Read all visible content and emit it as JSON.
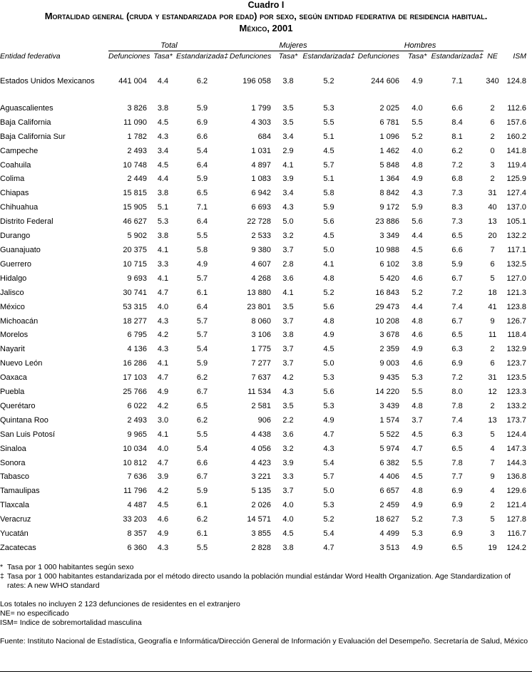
{
  "header": {
    "label": "Cuadro I",
    "title": "Mortalidad general (cruda y estandarizada por edad) por sexo, según entidad federativa de residencia habitual. México, 2001"
  },
  "table": {
    "groups": [
      "Total",
      "Mujeres",
      "Hombres"
    ],
    "columns": [
      "Entidad federativa",
      "Defunciones",
      "Tasa*",
      "Estandarizada‡",
      "Defunciones",
      "Tasa*",
      "Estandarizada‡",
      "Defunciones",
      "Tasa*",
      "Estandarizada‡",
      "NE",
      "ISM"
    ],
    "rows": [
      [
        "Estados Unidos Mexicanos",
        "441 004",
        "4.4",
        "6.2",
        "196 058",
        "3.8",
        "5.2",
        "244 606",
        "4.9",
        "7.1",
        "340",
        "124.8"
      ],
      [
        "Aguascalientes",
        "3 826",
        "3.8",
        "5.9",
        "1 799",
        "3.5",
        "5.3",
        "2 025",
        "4.0",
        "6.6",
        "2",
        "112.6"
      ],
      [
        "Baja California",
        "11 090",
        "4.5",
        "6.9",
        "4 303",
        "3.5",
        "5.5",
        "6 781",
        "5.5",
        "8.4",
        "6",
        "157.6"
      ],
      [
        "Baja California Sur",
        "1 782",
        "4.3",
        "6.6",
        "684",
        "3.4",
        "5.1",
        "1 096",
        "5.2",
        "8.1",
        "2",
        "160.2"
      ],
      [
        "Campeche",
        "2 493",
        "3.4",
        "5.4",
        "1 031",
        "2.9",
        "4.5",
        "1 462",
        "4.0",
        "6.2",
        "0",
        "141.8"
      ],
      [
        "Coahuila",
        "10 748",
        "4.5",
        "6.4",
        "4 897",
        "4.1",
        "5.7",
        "5 848",
        "4.8",
        "7.2",
        "3",
        "119.4"
      ],
      [
        "Colima",
        "2 449",
        "4.4",
        "5.9",
        "1 083",
        "3.9",
        "5.1",
        "1 364",
        "4.9",
        "6.8",
        "2",
        "125.9"
      ],
      [
        "Chiapas",
        "15 815",
        "3.8",
        "6.5",
        "6 942",
        "3.4",
        "5.8",
        "8 842",
        "4.3",
        "7.3",
        "31",
        "127.4"
      ],
      [
        "Chihuahua",
        "15 905",
        "5.1",
        "7.1",
        "6 693",
        "4.3",
        "5.9",
        "9 172",
        "5.9",
        "8.3",
        "40",
        "137.0"
      ],
      [
        "Distrito Federal",
        "46 627",
        "5.3",
        "6.4",
        "22 728",
        "5.0",
        "5.6",
        "23 886",
        "5.6",
        "7.3",
        "13",
        "105.1"
      ],
      [
        "Durango",
        "5 902",
        "3.8",
        "5.5",
        "2 533",
        "3.2",
        "4.5",
        "3 349",
        "4.4",
        "6.5",
        "20",
        "132.2"
      ],
      [
        "Guanajuato",
        "20 375",
        "4.1",
        "5.8",
        "9 380",
        "3.7",
        "5.0",
        "10 988",
        "4.5",
        "6.6",
        "7",
        "117.1"
      ],
      [
        "Guerrero",
        "10 715",
        "3.3",
        "4.9",
        "4 607",
        "2.8",
        "4.1",
        "6 102",
        "3.8",
        "5.9",
        "6",
        "132.5"
      ],
      [
        "Hidalgo",
        "9 693",
        "4.1",
        "5.7",
        "4 268",
        "3.6",
        "4.8",
        "5 420",
        "4.6",
        "6.7",
        "5",
        "127.0"
      ],
      [
        "Jalisco",
        "30 741",
        "4.7",
        "6.1",
        "13 880",
        "4.1",
        "5.2",
        "16 843",
        "5.2",
        "7.2",
        "18",
        "121.3"
      ],
      [
        "México",
        "53 315",
        "4.0",
        "6.4",
        "23 801",
        "3.5",
        "5.6",
        "29 473",
        "4.4",
        "7.4",
        "41",
        "123.8"
      ],
      [
        "Michoacán",
        "18 277",
        "4.3",
        "5.7",
        "8 060",
        "3.7",
        "4.8",
        "10 208",
        "4.8",
        "6.7",
        "9",
        "126.7"
      ],
      [
        "Morelos",
        "6 795",
        "4.2",
        "5.7",
        "3 106",
        "3.8",
        "4.9",
        "3 678",
        "4.6",
        "6.5",
        "11",
        "118.4"
      ],
      [
        "Nayarit",
        "4 136",
        "4.3",
        "5.4",
        "1 775",
        "3.7",
        "4.5",
        "2 359",
        "4.9",
        "6.3",
        "2",
        "132.9"
      ],
      [
        "Nuevo León",
        "16 286",
        "4.1",
        "5.9",
        "7 277",
        "3.7",
        "5.0",
        "9 003",
        "4.6",
        "6.9",
        "6",
        "123.7"
      ],
      [
        "Oaxaca",
        "17 103",
        "4.7",
        "6.2",
        "7 637",
        "4.2",
        "5.3",
        "9 435",
        "5.3",
        "7.2",
        "31",
        "123.5"
      ],
      [
        "Puebla",
        "25 766",
        "4.9",
        "6.7",
        "11 534",
        "4.3",
        "5.6",
        "14 220",
        "5.5",
        "8.0",
        "12",
        "123.3"
      ],
      [
        "Querétaro",
        "6 022",
        "4.2",
        "6.5",
        "2 581",
        "3.5",
        "5.3",
        "3 439",
        "4.8",
        "7.8",
        "2",
        "133.2"
      ],
      [
        "Quintana Roo",
        "2 493",
        "3.0",
        "6.2",
        "906",
        "2.2",
        "4.9",
        "1 574",
        "3.7",
        "7.4",
        "13",
        "173.7"
      ],
      [
        "San Luis Potosí",
        "9 965",
        "4.1",
        "5.5",
        "4 438",
        "3.6",
        "4.7",
        "5 522",
        "4.5",
        "6.3",
        "5",
        "124.4"
      ],
      [
        "Sinaloa",
        "10 034",
        "4.0",
        "5.4",
        "4 056",
        "3.2",
        "4.3",
        "5 974",
        "4.7",
        "6.5",
        "4",
        "147.3"
      ],
      [
        "Sonora",
        "10 812",
        "4.7",
        "6.6",
        "4 423",
        "3.9",
        "5.4",
        "6 382",
        "5.5",
        "7.8",
        "7",
        "144.3"
      ],
      [
        "Tabasco",
        "7 636",
        "3.9",
        "6.7",
        "3 221",
        "3.3",
        "5.7",
        "4 406",
        "4.5",
        "7.7",
        "9",
        "136.8"
      ],
      [
        "Tamaulipas",
        "11 796",
        "4.2",
        "5.9",
        "5 135",
        "3.7",
        "5.0",
        "6 657",
        "4.8",
        "6.9",
        "4",
        "129.6"
      ],
      [
        "Tlaxcala",
        "4 487",
        "4.5",
        "6.1",
        "2 026",
        "4.0",
        "5.3",
        "2 459",
        "4.9",
        "6.9",
        "2",
        "121.4"
      ],
      [
        "Veracruz",
        "33 203",
        "4.6",
        "6.2",
        "14 571",
        "4.0",
        "5.2",
        "18 627",
        "5.2",
        "7.3",
        "5",
        "127.8"
      ],
      [
        "Yucatán",
        "8 357",
        "4.9",
        "6.1",
        "3 855",
        "4.5",
        "5.4",
        "4 499",
        "5.3",
        "6.9",
        "3",
        "116.7"
      ],
      [
        "Zacatecas",
        "6 360",
        "4.3",
        "5.5",
        "2 828",
        "3.8",
        "4.7",
        "3 513",
        "4.9",
        "6.5",
        "19",
        "124.2"
      ]
    ]
  },
  "footnotes": [
    {
      "symbol": "*",
      "text": "Tasa por 1 000 habitantes según sexo"
    },
    {
      "symbol": "‡",
      "text": "Tasa por 1 000 habitantes estandarizada por el método directo usando la población mundial estándar Word Health Organization. Age Standardization of rates: A new WHO standard"
    }
  ],
  "notes": [
    "Los totales no incluyen 2 123 defunciones de residentes en el extranjero",
    "NE= no especificado",
    "ISM= Indice de sobremortalidad masculina"
  ],
  "source": "Fuente: Instituto Nacional de Estadística, Geografía e Informática/Dirección General de Información y Evaluación del Desempeño. Secretaría de Salud, México"
}
